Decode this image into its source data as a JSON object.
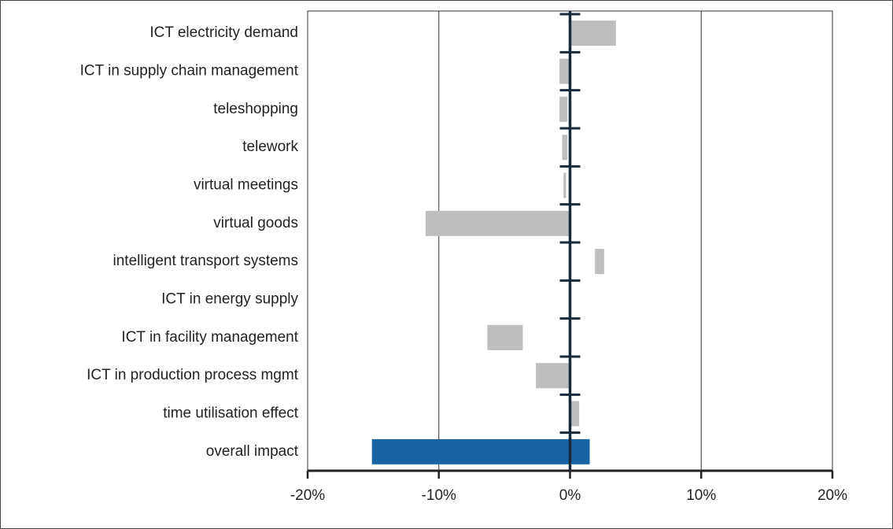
{
  "chart_data": {
    "type": "range-bar",
    "categories": [
      "ICT electricity demand",
      "ICT in supply chain management",
      "teleshopping",
      "telework",
      "virtual meetings",
      "virtual goods",
      "intelligent transport systems",
      "ICT in energy supply",
      "ICT in facility management",
      "ICT in production process mgmt",
      "time utilisation effect",
      "overall impact"
    ],
    "low": [
      0,
      -0.8,
      -0.8,
      -0.6,
      -0.5,
      -11,
      1.9,
      null,
      -6.3,
      -2.6,
      0,
      -15.1
    ],
    "high": [
      3.5,
      0,
      -0.2,
      -0.2,
      -0.3,
      0,
      2.6,
      null,
      -3.6,
      0,
      0.7,
      1.5
    ],
    "colors": [
      "#bcbec0",
      "#bcbec0",
      "#bcbec0",
      "#bcbec0",
      "#bcbec0",
      "#bcbec0",
      "#bcbec0",
      "#bcbec0",
      "#bcbec0",
      "#bcbec0",
      "#bcbec0",
      "#1763a3"
    ],
    "xlim": [
      -20,
      20
    ],
    "xticks": [
      {
        "value": -20,
        "label": "-20%"
      },
      {
        "value": -10,
        "label": "-10%"
      },
      {
        "value": 0,
        "label": "0%"
      },
      {
        "value": 10,
        "label": "10%"
      },
      {
        "value": 20,
        "label": "20%"
      }
    ],
    "grid": true
  }
}
